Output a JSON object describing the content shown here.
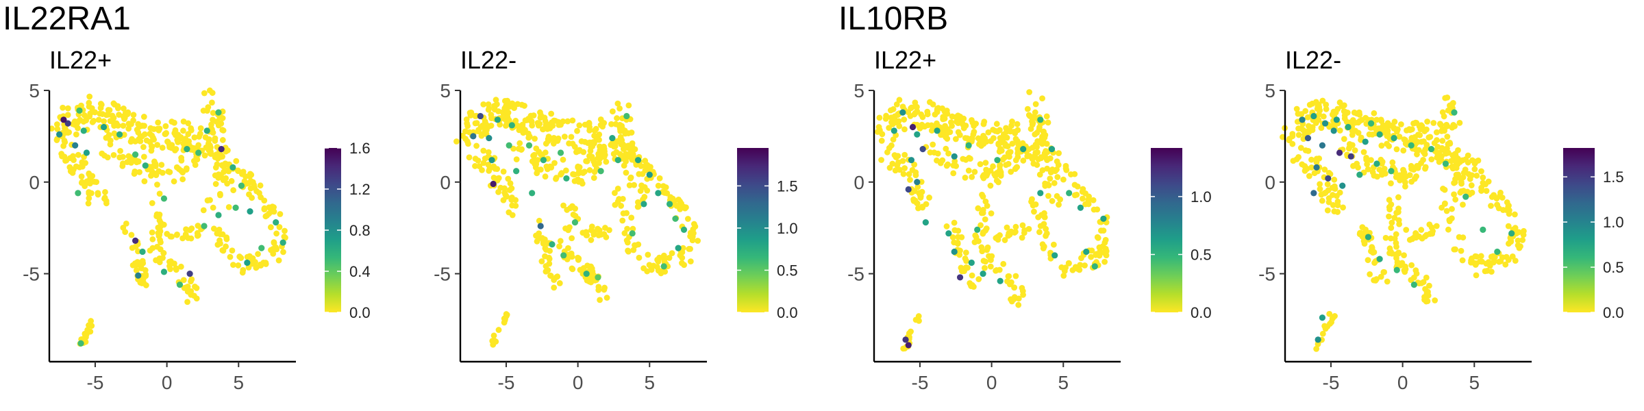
{
  "gene_titles": [
    "IL22RA1",
    "IL10RB"
  ],
  "colormap": {
    "name": "viridis-reversed",
    "stops": [
      "#fde725",
      "#b5de2b",
      "#6ece58",
      "#35b779",
      "#1f9e89",
      "#26828e",
      "#31688e",
      "#3e4989",
      "#482878",
      "#440154"
    ]
  },
  "chart_data": [
    {
      "type": "scatter",
      "gene": "IL22RA1",
      "title": "IL22+",
      "x_ticks": [
        -5,
        0,
        5
      ],
      "y_ticks": [
        5,
        0,
        -5
      ],
      "xlim": [
        -8.2,
        9
      ],
      "ylim": [
        -9.8,
        5
      ],
      "grid": false,
      "legend": {
        "position": "right",
        "min": 0.0,
        "max": 1.6,
        "ticks": [
          "0.0",
          "0.4",
          "0.8",
          "1.2",
          "1.6"
        ]
      },
      "density": 1.0,
      "expression": [
        {
          "x": -7.2,
          "y": 3.4,
          "v": 1.5
        },
        {
          "x": -6.9,
          "y": 3.2,
          "v": 1.3
        },
        {
          "x": -7.5,
          "y": 2.6,
          "v": 0.8
        },
        {
          "x": -6.4,
          "y": 2.0,
          "v": 0.9
        },
        {
          "x": -5.8,
          "y": 2.8,
          "v": 0.6
        },
        {
          "x": -4.4,
          "y": 3.0,
          "v": 0.7
        },
        {
          "x": -6.1,
          "y": 3.9,
          "v": 0.5
        },
        {
          "x": -3.3,
          "y": 2.6,
          "v": 0.6
        },
        {
          "x": -2.2,
          "y": 1.5,
          "v": 0.5
        },
        {
          "x": -1.5,
          "y": 0.9,
          "v": 0.6
        },
        {
          "x": -5.6,
          "y": 1.6,
          "v": 0.7
        },
        {
          "x": -6.2,
          "y": -0.6,
          "v": 0.5
        },
        {
          "x": 1.4,
          "y": 1.8,
          "v": 0.6
        },
        {
          "x": 2.2,
          "y": 1.6,
          "v": 0.5
        },
        {
          "x": 2.8,
          "y": 2.8,
          "v": 0.6
        },
        {
          "x": 3.6,
          "y": 3.8,
          "v": 0.5
        },
        {
          "x": 3.8,
          "y": 1.8,
          "v": 1.4
        },
        {
          "x": 4.6,
          "y": 0.8,
          "v": 0.6
        },
        {
          "x": 5.2,
          "y": -0.2,
          "v": 0.5
        },
        {
          "x": 5.8,
          "y": -1.6,
          "v": 0.7
        },
        {
          "x": 3.6,
          "y": -1.8,
          "v": 0.6
        },
        {
          "x": 4.8,
          "y": -1.4,
          "v": 0.5
        },
        {
          "x": 7.6,
          "y": -2.2,
          "v": 0.6
        },
        {
          "x": 8.1,
          "y": -3.3,
          "v": 0.6
        },
        {
          "x": 6.6,
          "y": -3.6,
          "v": 0.5
        },
        {
          "x": 5.6,
          "y": -4.4,
          "v": 0.7
        },
        {
          "x": -2.2,
          "y": -3.2,
          "v": 1.4
        },
        {
          "x": -1.7,
          "y": -3.8,
          "v": 0.6
        },
        {
          "x": -2.0,
          "y": -5.1,
          "v": 0.9
        },
        {
          "x": -0.2,
          "y": -4.9,
          "v": 0.6
        },
        {
          "x": 0.9,
          "y": -5.6,
          "v": 0.5
        },
        {
          "x": 1.6,
          "y": -5.0,
          "v": 1.3
        },
        {
          "x": -6.0,
          "y": -8.8,
          "v": 0.5
        },
        {
          "x": 2.6,
          "y": -2.4,
          "v": 0.5
        },
        {
          "x": -0.2,
          "y": -0.9,
          "v": 0.5
        }
      ]
    },
    {
      "type": "scatter",
      "gene": "IL22RA1",
      "title": "IL22-",
      "x_ticks": [
        -5,
        0,
        5
      ],
      "y_ticks": [
        5,
        0,
        -5
      ],
      "xlim": [
        -8.2,
        9
      ],
      "ylim": [
        -9.8,
        5
      ],
      "grid": false,
      "legend": {
        "position": "right",
        "min": 0.0,
        "max": 1.95,
        "ticks": [
          "0.0",
          "0.5",
          "1.0",
          "1.5"
        ]
      },
      "density": 1.05,
      "expression": [
        {
          "x": -6.8,
          "y": 3.6,
          "v": 1.5
        },
        {
          "x": -7.3,
          "y": 2.5,
          "v": 1.2
        },
        {
          "x": -6.2,
          "y": 2.4,
          "v": 1.0
        },
        {
          "x": -5.6,
          "y": 3.4,
          "v": 0.8
        },
        {
          "x": -4.6,
          "y": 3.1,
          "v": 0.7
        },
        {
          "x": -5.9,
          "y": -0.1,
          "v": 1.8
        },
        {
          "x": -6.0,
          "y": 1.2,
          "v": 0.9
        },
        {
          "x": -3.4,
          "y": 2.0,
          "v": 0.6
        },
        {
          "x": -2.4,
          "y": 1.2,
          "v": 0.7
        },
        {
          "x": -4.3,
          "y": 0.6,
          "v": 0.7
        },
        {
          "x": -1.2,
          "y": 1.6,
          "v": 0.6
        },
        {
          "x": -0.8,
          "y": 0.2,
          "v": 0.7
        },
        {
          "x": 2.4,
          "y": 2.4,
          "v": 0.8
        },
        {
          "x": 3.4,
          "y": 3.6,
          "v": 0.6
        },
        {
          "x": 2.8,
          "y": 1.2,
          "v": 0.7
        },
        {
          "x": 4.2,
          "y": 1.2,
          "v": 0.8
        },
        {
          "x": 5.0,
          "y": 0.4,
          "v": 0.9
        },
        {
          "x": 5.6,
          "y": -0.6,
          "v": 0.8
        },
        {
          "x": 6.4,
          "y": -1.2,
          "v": 0.7
        },
        {
          "x": 4.6,
          "y": -1.2,
          "v": 0.8
        },
        {
          "x": 7.4,
          "y": -2.6,
          "v": 0.7
        },
        {
          "x": 7.0,
          "y": -3.6,
          "v": 0.8
        },
        {
          "x": 6.0,
          "y": -4.6,
          "v": 0.6
        },
        {
          "x": 3.8,
          "y": -2.8,
          "v": 0.6
        },
        {
          "x": -2.6,
          "y": -2.4,
          "v": 1.3
        },
        {
          "x": -1.8,
          "y": -3.4,
          "v": 0.7
        },
        {
          "x": -1.0,
          "y": -4.0,
          "v": 0.6
        },
        {
          "x": 0.6,
          "y": -5.0,
          "v": 0.7
        },
        {
          "x": 1.4,
          "y": -5.2,
          "v": 0.5
        },
        {
          "x": -0.2,
          "y": -2.2,
          "v": 0.6
        },
        {
          "x": 1.6,
          "y": 0.6,
          "v": 0.6
        },
        {
          "x": -3.2,
          "y": -0.6,
          "v": 0.7
        },
        {
          "x": -4.8,
          "y": 2.0,
          "v": 0.6
        },
        {
          "x": 6.8,
          "y": -2.0,
          "v": 0.6
        }
      ]
    },
    {
      "type": "scatter",
      "gene": "IL10RB",
      "title": "IL22+",
      "x_ticks": [
        -5,
        0,
        5
      ],
      "y_ticks": [
        5,
        0,
        -5
      ],
      "xlim": [
        -8.2,
        9
      ],
      "ylim": [
        -9.8,
        5
      ],
      "grid": false,
      "legend": {
        "position": "right",
        "min": 0.0,
        "max": 1.42,
        "ticks": [
          "0.0",
          "0.5",
          "1.0"
        ]
      },
      "density": 1.0,
      "expression": [
        {
          "x": -6.2,
          "y": 3.8,
          "v": 0.7
        },
        {
          "x": -6.8,
          "y": 2.8,
          "v": 0.6
        },
        {
          "x": -5.5,
          "y": 3.0,
          "v": 1.3
        },
        {
          "x": -5.2,
          "y": 2.6,
          "v": 0.6
        },
        {
          "x": -4.8,
          "y": 1.8,
          "v": 1.1
        },
        {
          "x": -3.8,
          "y": 2.8,
          "v": 0.6
        },
        {
          "x": -5.6,
          "y": 1.2,
          "v": 0.7
        },
        {
          "x": -5.8,
          "y": -0.4,
          "v": 1.1
        },
        {
          "x": -5.2,
          "y": 0.0,
          "v": 0.8
        },
        {
          "x": -2.6,
          "y": 1.4,
          "v": 0.7
        },
        {
          "x": -1.6,
          "y": 2.0,
          "v": 0.5
        },
        {
          "x": 0.4,
          "y": 1.2,
          "v": 0.5
        },
        {
          "x": 2.2,
          "y": 1.8,
          "v": 0.6
        },
        {
          "x": 3.4,
          "y": 3.4,
          "v": 0.5
        },
        {
          "x": 4.2,
          "y": 1.8,
          "v": 0.6
        },
        {
          "x": 3.4,
          "y": -0.6,
          "v": 0.6
        },
        {
          "x": 5.4,
          "y": -0.6,
          "v": 0.5
        },
        {
          "x": 4.4,
          "y": -4.0,
          "v": 0.6
        },
        {
          "x": 6.6,
          "y": -3.8,
          "v": 0.6
        },
        {
          "x": 7.2,
          "y": -4.6,
          "v": 0.5
        },
        {
          "x": 7.8,
          "y": -2.0,
          "v": 0.6
        },
        {
          "x": -3.0,
          "y": -2.8,
          "v": 0.6
        },
        {
          "x": -2.6,
          "y": -3.8,
          "v": 0.7
        },
        {
          "x": -2.2,
          "y": -5.2,
          "v": 1.2
        },
        {
          "x": -1.4,
          "y": -4.4,
          "v": 0.6
        },
        {
          "x": -0.6,
          "y": -5.0,
          "v": 0.6
        },
        {
          "x": 0.6,
          "y": -5.4,
          "v": 0.6
        },
        {
          "x": -6.0,
          "y": -8.6,
          "v": 1.2
        },
        {
          "x": -5.8,
          "y": -8.9,
          "v": 1.3
        },
        {
          "x": -4.6,
          "y": -2.2,
          "v": 0.6
        },
        {
          "x": -1.0,
          "y": -2.6,
          "v": 0.5
        },
        {
          "x": 6.2,
          "y": -1.4,
          "v": 0.6
        }
      ]
    },
    {
      "type": "scatter",
      "gene": "IL10RB",
      "title": "IL22-",
      "x_ticks": [
        -5,
        0,
        5
      ],
      "y_ticks": [
        5,
        0,
        -5
      ],
      "xlim": [
        -8.2,
        9
      ],
      "ylim": [
        -9.8,
        5
      ],
      "grid": false,
      "legend": {
        "position": "right",
        "min": 0.0,
        "max": 1.82,
        "ticks": [
          "0.0",
          "0.5",
          "1.0",
          "1.5"
        ]
      },
      "density": 1.05,
      "expression": [
        {
          "x": -7.0,
          "y": 3.4,
          "v": 1.0
        },
        {
          "x": -6.2,
          "y": 3.6,
          "v": 0.8
        },
        {
          "x": -5.4,
          "y": 3.2,
          "v": 0.9
        },
        {
          "x": -4.6,
          "y": 3.4,
          "v": 0.8
        },
        {
          "x": -3.8,
          "y": 3.0,
          "v": 0.7
        },
        {
          "x": -6.6,
          "y": 2.4,
          "v": 1.3
        },
        {
          "x": -5.6,
          "y": 2.0,
          "v": 1.1
        },
        {
          "x": -4.4,
          "y": 1.6,
          "v": 1.6
        },
        {
          "x": -3.6,
          "y": 1.4,
          "v": 1.5
        },
        {
          "x": -2.6,
          "y": 2.2,
          "v": 0.8
        },
        {
          "x": -1.6,
          "y": 2.6,
          "v": 0.7
        },
        {
          "x": -0.6,
          "y": 2.4,
          "v": 0.7
        },
        {
          "x": 0.6,
          "y": 2.0,
          "v": 0.6
        },
        {
          "x": -6.0,
          "y": 0.8,
          "v": 1.1
        },
        {
          "x": -5.2,
          "y": 0.2,
          "v": 1.4
        },
        {
          "x": -6.2,
          "y": -0.6,
          "v": 1.2
        },
        {
          "x": -4.2,
          "y": -0.2,
          "v": 0.9
        },
        {
          "x": -3.0,
          "y": 0.4,
          "v": 0.7
        },
        {
          "x": -1.8,
          "y": 1.0,
          "v": 0.7
        },
        {
          "x": -0.8,
          "y": 0.6,
          "v": 0.6
        },
        {
          "x": 2.0,
          "y": 1.8,
          "v": 0.6
        },
        {
          "x": 3.6,
          "y": 3.8,
          "v": 0.6
        },
        {
          "x": 3.0,
          "y": 1.0,
          "v": 0.6
        },
        {
          "x": 4.4,
          "y": -0.8,
          "v": 0.6
        },
        {
          "x": 5.6,
          "y": -2.6,
          "v": 0.6
        },
        {
          "x": 7.6,
          "y": -2.8,
          "v": 0.7
        },
        {
          "x": 6.6,
          "y": -3.8,
          "v": 0.6
        },
        {
          "x": -2.4,
          "y": -3.0,
          "v": 0.7
        },
        {
          "x": -1.6,
          "y": -4.2,
          "v": 0.7
        },
        {
          "x": -0.4,
          "y": -4.8,
          "v": 0.6
        },
        {
          "x": 0.8,
          "y": -5.6,
          "v": 0.6
        },
        {
          "x": -5.9,
          "y": -8.6,
          "v": 0.9
        },
        {
          "x": -5.6,
          "y": -7.4,
          "v": 0.8
        },
        {
          "x": -4.8,
          "y": 2.8,
          "v": 0.9
        },
        {
          "x": -2.2,
          "y": 3.2,
          "v": 0.6
        }
      ]
    }
  ]
}
